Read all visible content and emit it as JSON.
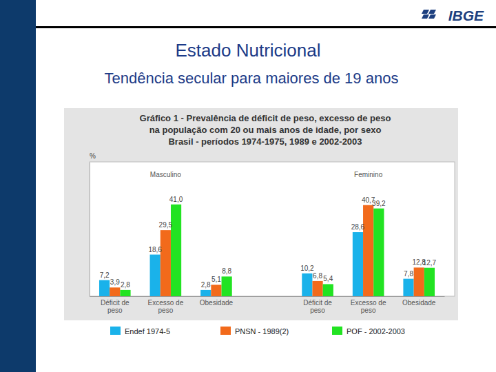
{
  "page": {
    "logo": "IBGE",
    "title": "Estado Nutricional",
    "subtitle": "Tendência secular para maiores de 19 anos"
  },
  "chart_data": {
    "type": "bar",
    "title": [
      "Gráfico 1 - Prevalência de déficit de peso, excesso de peso",
      "na população com 20 ou mais anos de idade, por sexo",
      "Brasil - períodos 1974-1975, 1989 e 2002-2003"
    ],
    "y_label": "%",
    "groups": [
      "Masculino",
      "Feminino"
    ],
    "categories": [
      "Déficit de peso",
      "Excesso de peso",
      "Obesidade",
      "Déficit de peso",
      "Excesso de peso",
      "Obesidade"
    ],
    "series": [
      {
        "name": "Endef 1974-5",
        "color": "#1ab2ea",
        "values": [
          7.2,
          18.6,
          2.8,
          10.2,
          28.6,
          7.8
        ],
        "value_labels": [
          "7,2",
          "18,6",
          "2,8",
          "10,2",
          "28,6",
          "7,8"
        ]
      },
      {
        "name": "PNSN - 1989(2)",
        "color": "#f26a1b",
        "values": [
          3.9,
          29.5,
          5.1,
          6.8,
          40.7,
          12.8
        ],
        "value_labels": [
          "3,9",
          "29,5",
          "5,1",
          "6,8",
          "40,7",
          "12,8"
        ]
      },
      {
        "name": "POF - 2002-2003",
        "color": "#22e322",
        "values": [
          2.8,
          41.0,
          8.8,
          5.4,
          39.2,
          12.7
        ],
        "value_labels": [
          "2,8",
          "41,0",
          "8,8",
          "5,4",
          "39,2",
          "12,7"
        ]
      }
    ],
    "ylim": [
      0,
      60
    ],
    "tick_labels": "x",
    "data_labels": true,
    "legend": "bottom",
    "grid": false
  }
}
